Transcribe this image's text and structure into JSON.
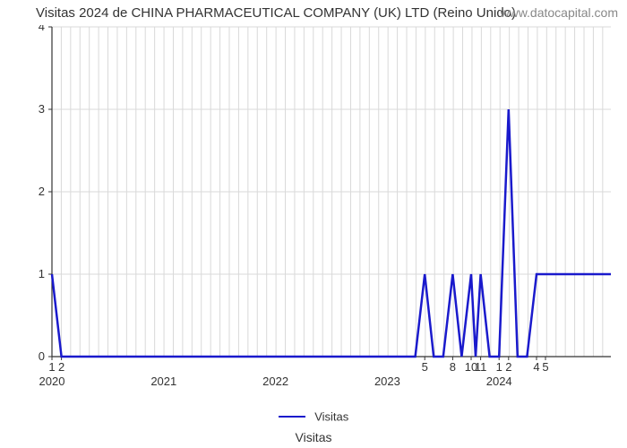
{
  "title": "Visitas 2024 de CHINA PHARMACEUTICAL COMPANY (UK) LTD (Reino Unido)",
  "watermark": "www.datocapital.com",
  "xaxis_label": "Visitas",
  "legend_label": "Visitas",
  "chart": {
    "type": "line",
    "line_color": "#1a1acc",
    "line_width": 2.5,
    "grid_color": "#d9d9d9",
    "grid_width": 1,
    "axis_color": "#333333",
    "background_color": "#ffffff",
    "tick_fontsize": 13,
    "ylim": [
      0,
      4
    ],
    "yticks": [
      0,
      1,
      2,
      3,
      4
    ],
    "x_year_ticks": [
      {
        "pos": 0.0,
        "label": "2020"
      },
      {
        "pos": 0.2,
        "label": "2021"
      },
      {
        "pos": 0.4,
        "label": "2022"
      },
      {
        "pos": 0.6,
        "label": "2023"
      },
      {
        "pos": 0.8,
        "label": "2024"
      }
    ],
    "x_month_ticks": [
      {
        "pos": 0.0,
        "label": "1"
      },
      {
        "pos": 0.017,
        "label": "2"
      },
      {
        "pos": 0.667,
        "label": "5"
      },
      {
        "pos": 0.717,
        "label": "8"
      },
      {
        "pos": 0.75,
        "label": "10"
      },
      {
        "pos": 0.767,
        "label": "11"
      },
      {
        "pos": 0.8,
        "label": "1"
      },
      {
        "pos": 0.817,
        "label": "2"
      },
      {
        "pos": 0.867,
        "label": "4"
      },
      {
        "pos": 0.883,
        "label": "5"
      }
    ],
    "minor_x_step": 0.0167,
    "series": [
      {
        "x": 0.0,
        "y": 1.0
      },
      {
        "x": 0.017,
        "y": 0.0
      },
      {
        "x": 0.65,
        "y": 0.0
      },
      {
        "x": 0.667,
        "y": 1.0
      },
      {
        "x": 0.683,
        "y": 0.0
      },
      {
        "x": 0.7,
        "y": 0.0
      },
      {
        "x": 0.717,
        "y": 1.0
      },
      {
        "x": 0.733,
        "y": 0.0
      },
      {
        "x": 0.75,
        "y": 1.0
      },
      {
        "x": 0.758,
        "y": 0.0
      },
      {
        "x": 0.767,
        "y": 1.0
      },
      {
        "x": 0.783,
        "y": 0.0
      },
      {
        "x": 0.8,
        "y": 0.0
      },
      {
        "x": 0.817,
        "y": 3.0
      },
      {
        "x": 0.833,
        "y": 0.0
      },
      {
        "x": 0.85,
        "y": 0.0
      },
      {
        "x": 0.867,
        "y": 1.0
      },
      {
        "x": 0.883,
        "y": 1.0
      },
      {
        "x": 1.0,
        "y": 1.0
      }
    ]
  }
}
